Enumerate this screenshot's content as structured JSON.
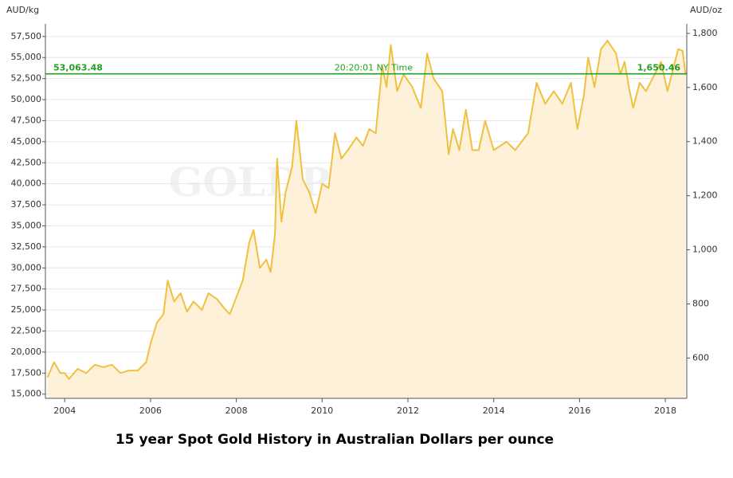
{
  "chart_data": {
    "type": "area",
    "title": "15 year Spot Gold History in Australian Dollars per ounce",
    "ylabel": "AUD/kg",
    "y2label": "AUD/oz",
    "watermark": "GOLDPRICE.ORG",
    "annotations": [
      "20:20:01 NY Time"
    ],
    "reference_lines": [
      {
        "value": 53063.48,
        "label": "53,063.48",
        "color": "#22a022"
      },
      {
        "value": 1650.46,
        "label": "1,650.46",
        "axis": "y2",
        "color": "#22a022"
      }
    ],
    "x": [
      2003.6,
      2003.75,
      2003.9,
      2004.0,
      2004.1,
      2004.3,
      2004.5,
      2004.7,
      2004.9,
      2005.1,
      2005.3,
      2005.5,
      2005.7,
      2005.9,
      2006.0,
      2006.15,
      2006.3,
      2006.4,
      2006.55,
      2006.7,
      2006.85,
      2007.0,
      2007.2,
      2007.35,
      2007.55,
      2007.75,
      2007.85,
      2008.0,
      2008.15,
      2008.3,
      2008.4,
      2008.55,
      2008.7,
      2008.8,
      2008.9,
      2008.95,
      2009.05,
      2009.15,
      2009.3,
      2009.4,
      2009.55,
      2009.7,
      2009.85,
      2010.0,
      2010.15,
      2010.3,
      2010.45,
      2010.6,
      2010.8,
      2010.95,
      2011.1,
      2011.25,
      2011.4,
      2011.5,
      2011.6,
      2011.75,
      2011.9,
      2012.1,
      2012.3,
      2012.45,
      2012.6,
      2012.8,
      2012.95,
      2013.05,
      2013.2,
      2013.35,
      2013.5,
      2013.65,
      2013.8,
      2014.0,
      2014.3,
      2014.5,
      2014.8,
      2015.0,
      2015.2,
      2015.4,
      2015.6,
      2015.8,
      2015.95,
      2016.1,
      2016.2,
      2016.35,
      2016.5,
      2016.65,
      2016.85,
      2016.95,
      2017.05,
      2017.15,
      2017.25,
      2017.4,
      2017.55,
      2017.75,
      2017.9,
      2018.05,
      2018.2,
      2018.3,
      2018.4,
      2018.47
    ],
    "series": [
      {
        "name": "AUD/kg",
        "color": "#f0c040",
        "fill": "#fdf1da",
        "values": [
          17000,
          18800,
          17500,
          17500,
          16800,
          18000,
          17500,
          18500,
          18200,
          18500,
          17500,
          17800,
          17800,
          18800,
          21000,
          23500,
          24500,
          28500,
          26000,
          27000,
          24800,
          26000,
          25000,
          27000,
          26300,
          25000,
          24500,
          26500,
          28500,
          33000,
          34500,
          30000,
          31000,
          29500,
          34000,
          43000,
          35500,
          39000,
          42000,
          47500,
          40500,
          39000,
          36500,
          40000,
          39500,
          46000,
          43000,
          44000,
          45500,
          44500,
          46500,
          46000,
          54000,
          51500,
          56500,
          51000,
          53000,
          51500,
          49000,
          55500,
          52500,
          51000,
          43500,
          46500,
          44000,
          48800,
          44000,
          44000,
          47500,
          44000,
          45000,
          44000,
          46000,
          52000,
          49500,
          51000,
          49500,
          52000,
          46500,
          50500,
          55000,
          51500,
          56000,
          57000,
          55500,
          53000,
          54500,
          51500,
          49000,
          52000,
          51000,
          53000,
          54500,
          51000,
          54000,
          56000,
          55800,
          53063
        ]
      }
    ],
    "xlim": [
      2003.55,
      2018.5
    ],
    "xticks": [
      2004,
      2006,
      2008,
      2010,
      2012,
      2014,
      2016,
      2018
    ],
    "ylim": [
      14500,
      59000
    ],
    "yticks": [
      {
        "value": 15000,
        "label": "15,000"
      },
      {
        "value": 17500,
        "label": "17,500"
      },
      {
        "value": 20000,
        "label": "20,000"
      },
      {
        "value": 22500,
        "label": "22,500"
      },
      {
        "value": 25000,
        "label": "25,000"
      },
      {
        "value": 27500,
        "label": "27,500"
      },
      {
        "value": 30000,
        "label": "30,000"
      },
      {
        "value": 32500,
        "label": "32,500"
      },
      {
        "value": 35000,
        "label": "35,000"
      },
      {
        "value": 37500,
        "label": "37,500"
      },
      {
        "value": 40000,
        "label": "40,000"
      },
      {
        "value": 42500,
        "label": "42,500"
      },
      {
        "value": 45000,
        "label": "45,000"
      },
      {
        "value": 47500,
        "label": "47,500"
      },
      {
        "value": 50000,
        "label": "50,000"
      },
      {
        "value": 52500,
        "label": "52,500"
      },
      {
        "value": 55000,
        "label": "55,000"
      },
      {
        "value": 57500,
        "label": "57,500"
      }
    ],
    "y2lim": [
      451,
      1835
    ],
    "y2ticks": [
      600,
      800,
      {
        "value": 1000,
        "label": "1,000"
      },
      {
        "value": 1200,
        "label": "1,200"
      },
      {
        "value": 1400,
        "label": "1,400"
      },
      {
        "value": 1600,
        "label": "1,600"
      },
      {
        "value": 1800,
        "label": "1,800"
      }
    ],
    "grid": true
  }
}
